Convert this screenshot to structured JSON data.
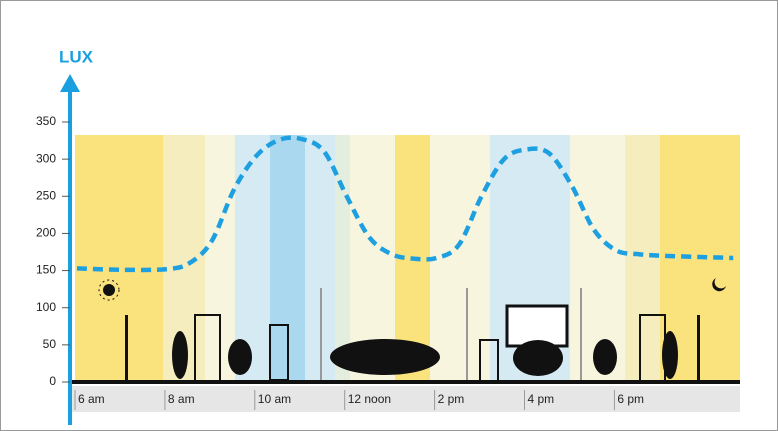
{
  "chart_data": {
    "type": "line",
    "y_label": "LUX",
    "x": [
      6,
      7,
      8,
      8.5,
      9,
      9.5,
      10,
      10.5,
      11,
      11.5,
      12,
      12.5,
      13,
      13.5,
      14,
      14.5,
      15,
      15.5,
      16,
      16.5,
      17,
      17.5,
      18,
      18.5,
      19,
      20,
      20.6
    ],
    "series": [
      {
        "color": "#1ea0e0",
        "values": [
          153,
          151,
          152,
          160,
          190,
          260,
          305,
          326,
          327,
          310,
          250,
          195,
          172,
          166,
          167,
          185,
          250,
          300,
          313,
          308,
          265,
          205,
          177,
          172,
          170,
          168,
          167
        ]
      }
    ],
    "xlim": [
      6,
      20.75
    ],
    "xticks": [
      {
        "value": 6,
        "label": "6 am"
      },
      {
        "value": 8,
        "label": "8 am"
      },
      {
        "value": 10,
        "label": "10 am"
      },
      {
        "value": 12,
        "label": "12 noon"
      },
      {
        "value": 14,
        "label": "2 pm"
      },
      {
        "value": 16,
        "label": "4 pm"
      },
      {
        "value": 18,
        "label": "6 pm"
      }
    ],
    "ylim": [
      0,
      350
    ],
    "yticks": [
      0,
      50,
      100,
      150,
      200,
      250,
      300,
      350
    ]
  }
}
